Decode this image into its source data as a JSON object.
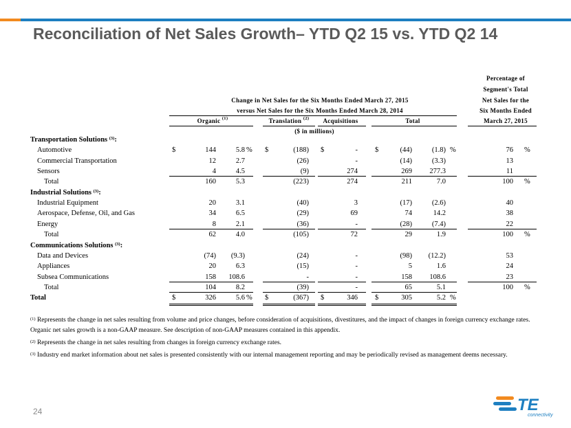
{
  "slide": {
    "title": "Reconciliation of Net Sales Growth– YTD Q2 15 vs. YTD Q2 14",
    "page_number": "24",
    "accent_orange": "#f28a1f",
    "accent_blue": "#1d7fc1",
    "title_color": "#5a5a5a"
  },
  "header": {
    "change_line1": "Change in Net Sales for the Six Months Ended March 27, 2015",
    "change_line2": "versus Net Sales for the Six Months Ended March 28, 2014",
    "pct_line1": "Percentage of",
    "pct_line2": "Segment's Total",
    "pct_line3": "Net Sales for the",
    "pct_line4": "Six Months Ended",
    "pct_line5": "March 27, 2015",
    "col_organic": "Organic",
    "col_organic_sup": "(1)",
    "col_translation": "Translation",
    "col_translation_sup": "(2)",
    "col_acquisitions": "Acquisitions",
    "col_total": "Total",
    "units": "($ in millions)"
  },
  "rows": [
    {
      "label": "Transportation Solutions",
      "sup": "(3)",
      "suffix": ":",
      "type": "section"
    },
    {
      "label": "Automotive",
      "type": "item",
      "org_d": "$",
      "org": "144",
      "org_pct": "5.8",
      "org_pct_sym": "%",
      "tr_d": "$",
      "tr": "(188)",
      "acq_d": "$",
      "acq": "-",
      "tot_d": "$",
      "tot": "(44)",
      "tot_pct": "(1.8)",
      "tot_pct_sym": "%",
      "seg": "76",
      "seg_sym": "%"
    },
    {
      "label": "Commercial Transportation",
      "type": "item",
      "org": "12",
      "org_pct": "2.7",
      "tr": "(26)",
      "acq": "-",
      "tot": "(14)",
      "tot_pct": "(3.3)",
      "seg": "13"
    },
    {
      "label": "Sensors",
      "type": "item",
      "org": "4",
      "org_pct": "4.5",
      "tr": "(9)",
      "acq": "274",
      "tot": "269",
      "tot_pct": "277.3",
      "seg": "11",
      "underline": true
    },
    {
      "label": "Total",
      "type": "total",
      "org": "160",
      "org_pct": "5.3",
      "tr": "(223)",
      "acq": "274",
      "tot": "211",
      "tot_pct": "7.0",
      "seg": "100",
      "seg_sym": "%"
    },
    {
      "label": "Industrial Solutions",
      "sup": "(3)",
      "suffix": ":",
      "type": "section"
    },
    {
      "label": "Industrial Equipment",
      "type": "item",
      "org": "20",
      "org_pct": "3.1",
      "tr": "(40)",
      "acq": "3",
      "tot": "(17)",
      "tot_pct": "(2.6)",
      "seg": "40"
    },
    {
      "label": "Aerospace, Defense, Oil, and Gas",
      "type": "item",
      "org": "34",
      "org_pct": "6.5",
      "tr": "(29)",
      "acq": "69",
      "tot": "74",
      "tot_pct": "14.2",
      "seg": "38"
    },
    {
      "label": "Energy",
      "type": "item",
      "org": "8",
      "org_pct": "2.1",
      "tr": "(36)",
      "acq": "-",
      "tot": "(28)",
      "tot_pct": "(7.4)",
      "seg": "22",
      "underline": true
    },
    {
      "label": "Total",
      "type": "total",
      "org": "62",
      "org_pct": "4.0",
      "tr": "(105)",
      "acq": "72",
      "tot": "29",
      "tot_pct": "1.9",
      "seg": "100",
      "seg_sym": "%"
    },
    {
      "label": "Communications Solutions",
      "sup": "(3)",
      "suffix": ":",
      "type": "section"
    },
    {
      "label": "Data and Devices",
      "type": "item",
      "org": "(74)",
      "org_pct": "(9.3)",
      "tr": "(24)",
      "acq": "-",
      "tot": "(98)",
      "tot_pct": "(12.2)",
      "seg": "53"
    },
    {
      "label": "Appliances",
      "type": "item",
      "org": "20",
      "org_pct": "6.3",
      "tr": "(15)",
      "acq": "-",
      "tot": "5",
      "tot_pct": "1.6",
      "seg": "24"
    },
    {
      "label": "Subsea Communications",
      "type": "item",
      "org": "158",
      "org_pct": "108.6",
      "tr": "-",
      "acq": "-",
      "tot": "158",
      "tot_pct": "108.6",
      "seg": "23",
      "underline": true
    },
    {
      "label": "Total",
      "type": "total",
      "org": "104",
      "org_pct": "8.2",
      "tr": "(39)",
      "acq": "-",
      "tot": "65",
      "tot_pct": "5.1",
      "seg": "100",
      "seg_sym": "%"
    },
    {
      "label": "Total",
      "type": "grand",
      "org_d": "$",
      "org": "326",
      "org_pct": "5.6",
      "org_pct_sym": "%",
      "tr_d": "$",
      "tr": "(367)",
      "acq_d": "$",
      "acq": "346",
      "tot_d": "$",
      "tot": "305",
      "tot_pct": "5.2",
      "tot_pct_sym": "%"
    }
  ],
  "footnotes": {
    "fn1_sup": "(1)",
    "fn1_text": "Represents the change in net sales resulting from volume and price changes, before consideration of acquisitions, divestitures, and the impact of changes in foreign currency exchange rates.  Organic net sales growth is a non-GAAP measure.  See description of non-GAAP measures contained in this appendix.",
    "fn2_sup": "(2)",
    "fn2_text": "Represents the change in net sales resulting from changes in foreign currency exchange rates.",
    "fn3_sup": "(3)",
    "fn3_text": "Industry end market information about net sales is presented consistently with our internal management reporting and may be periodically revised as management deems necessary."
  },
  "logo": {
    "text": "TE",
    "tagline": "connectivity",
    "orange": "#f28a1f",
    "blue": "#1d7fc1"
  }
}
